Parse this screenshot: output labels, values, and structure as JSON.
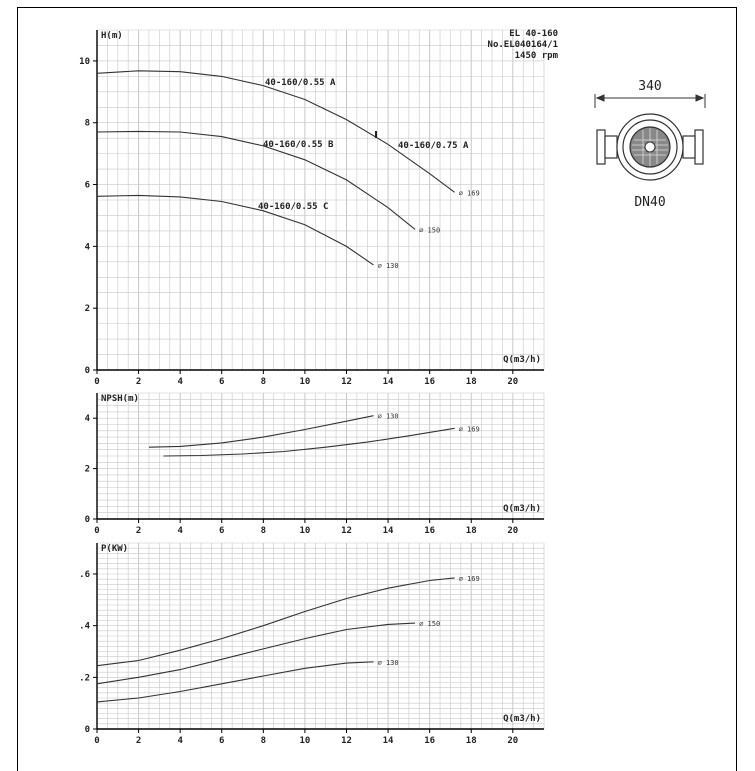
{
  "header": {
    "model": "EL 40-160",
    "number": "No.EL040164/1",
    "speed": "1450 rpm"
  },
  "dimension": {
    "width_label": "340",
    "dn_label": "DN40"
  },
  "colors": {
    "curve": "#333333",
    "grid": "#c8c8c8",
    "axis": "#000000"
  },
  "chart_data": [
    {
      "type": "line",
      "title": "",
      "ylabel": "H(m)",
      "xlabel": "Q(m3/h)",
      "xlim": [
        0,
        21.5
      ],
      "ylim": [
        0,
        11
      ],
      "x_ticks": [
        "0",
        "2",
        "4",
        "6",
        "8",
        "10",
        "12",
        "14",
        "16",
        "18",
        "20"
      ],
      "y_ticks": [
        {
          "v": 0,
          "label": "0"
        },
        {
          "v": 2,
          "label": "2"
        },
        {
          "v": 4,
          "label": "4"
        },
        {
          "v": 6,
          "label": "6"
        },
        {
          "v": 8,
          "label": "8"
        },
        {
          "v": 10,
          "label": "10"
        }
      ],
      "series": [
        {
          "name": "40-160/0.55 A",
          "end_label": "⌀ 169",
          "x": [
            0,
            2,
            4,
            6,
            8,
            10,
            12,
            14,
            16,
            17.2
          ],
          "y": [
            9.6,
            9.68,
            9.65,
            9.5,
            9.2,
            8.75,
            8.1,
            7.3,
            6.35,
            5.75
          ]
        },
        {
          "name": "40-160/0.55 B",
          "end_label": "⌀ 150",
          "x": [
            0,
            2,
            4,
            6,
            8,
            10,
            12,
            14,
            15.3
          ],
          "y": [
            7.7,
            7.72,
            7.7,
            7.55,
            7.25,
            6.8,
            6.15,
            5.25,
            4.55
          ]
        },
        {
          "name": "40-160/0.55 C",
          "end_label": "⌀ 130",
          "x": [
            0,
            2,
            4,
            6,
            8,
            10,
            12,
            13.3
          ],
          "y": [
            5.62,
            5.65,
            5.6,
            5.45,
            5.15,
            4.7,
            4.0,
            3.4
          ]
        }
      ],
      "annotations": [
        "40-160/0.75 A"
      ]
    },
    {
      "type": "line",
      "title": "",
      "ylabel": "NPSH(m)",
      "xlabel": "Q(m3/h)",
      "xlim": [
        0,
        21.5
      ],
      "ylim": [
        0,
        5
      ],
      "x_ticks": [
        "0",
        "2",
        "4",
        "6",
        "8",
        "10",
        "12",
        "14",
        "16",
        "18",
        "20"
      ],
      "y_ticks": [
        {
          "v": 0,
          "label": "0"
        },
        {
          "v": 2,
          "label": "2"
        },
        {
          "v": 4,
          "label": "4"
        }
      ],
      "series": [
        {
          "end_label": "⌀ 130",
          "x": [
            2.5,
            4,
            6,
            8,
            10,
            12,
            13.3
          ],
          "y": [
            2.85,
            2.88,
            3.02,
            3.25,
            3.55,
            3.88,
            4.1
          ]
        },
        {
          "end_label": "⌀ 169",
          "x": [
            3.2,
            5,
            7,
            9,
            11,
            13,
            15,
            17.2
          ],
          "y": [
            2.5,
            2.52,
            2.58,
            2.68,
            2.85,
            3.05,
            3.3,
            3.6
          ]
        }
      ]
    },
    {
      "type": "line",
      "title": "",
      "ylabel": "P(KW)",
      "xlabel": "Q(m3/h)",
      "xlim": [
        0,
        21.5
      ],
      "ylim": [
        0,
        0.72
      ],
      "x_ticks": [
        "0",
        "2",
        "4",
        "6",
        "8",
        "10",
        "12",
        "14",
        "16",
        "18",
        "20"
      ],
      "y_ticks": [
        {
          "v": 0,
          "label": "0"
        },
        {
          "v": 0.2,
          "label": ".2"
        },
        {
          "v": 0.4,
          "label": ".4"
        },
        {
          "v": 0.6,
          "label": ".6"
        }
      ],
      "series": [
        {
          "end_label": "⌀ 169",
          "x": [
            0,
            2,
            4,
            6,
            8,
            10,
            12,
            14,
            16,
            17.2
          ],
          "y": [
            0.245,
            0.265,
            0.305,
            0.35,
            0.4,
            0.455,
            0.505,
            0.545,
            0.575,
            0.585
          ]
        },
        {
          "end_label": "⌀ 150",
          "x": [
            0,
            2,
            4,
            6,
            8,
            10,
            12,
            14,
            15.3
          ],
          "y": [
            0.175,
            0.2,
            0.23,
            0.27,
            0.31,
            0.35,
            0.385,
            0.405,
            0.41
          ]
        },
        {
          "end_label": "⌀ 130",
          "x": [
            0,
            2,
            4,
            6,
            8,
            10,
            12,
            13.3
          ],
          "y": [
            0.105,
            0.12,
            0.145,
            0.175,
            0.205,
            0.235,
            0.255,
            0.26
          ]
        }
      ]
    }
  ]
}
